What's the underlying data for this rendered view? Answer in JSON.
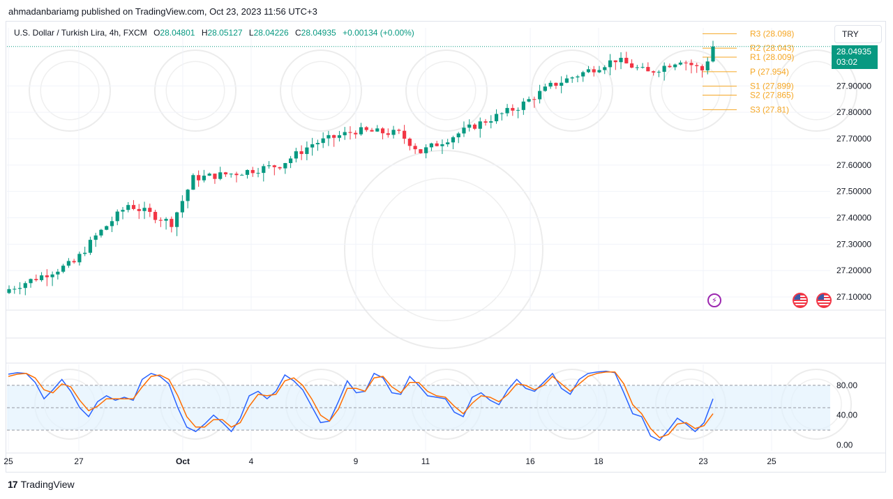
{
  "publisher_line": "ahmadanbariamg published on TradingView.com, Oct 23, 2023 11:56 UTC+3",
  "legend": {
    "symbol": "U.S. Dollar / Turkish Lira, 4h, FXCM",
    "open_label": "O",
    "open": "28.04801",
    "high_label": "H",
    "high": "28.05127",
    "low_label": "L",
    "low": "28.04226",
    "close_label": "C",
    "close": "28.04935",
    "change": "+0.00134 (+0.00%)"
  },
  "currency_button": "TRY",
  "price_badge": {
    "price": "28.04935",
    "countdown": "03:02"
  },
  "footer_brand": "TradingView",
  "colors": {
    "up": "#089981",
    "down": "#f23645",
    "pivot": "#f5a623",
    "stoch_k": "#2962ff",
    "stoch_d": "#ff6d00",
    "band": "#e3f2fd"
  },
  "chart_data": [
    {
      "type": "candlestick",
      "title": "",
      "ylim": [
        27.05,
        28.12
      ],
      "y_ticks": [
        "27.10000",
        "27.20000",
        "27.30000",
        "27.40000",
        "27.50000",
        "27.60000",
        "27.70000",
        "27.80000",
        "27.90000"
      ],
      "x_ticks": [
        "25",
        "27",
        "Oct",
        "4",
        "9",
        "11",
        "16",
        "18",
        "23",
        "25"
      ],
      "last_price": 28.04935,
      "pivots": [
        {
          "label": "R3",
          "value": 28.098
        },
        {
          "label": "R2",
          "value": 28.043
        },
        {
          "label": "R1",
          "value": 28.009
        },
        {
          "label": "P",
          "value": 27.954
        },
        {
          "label": "S1",
          "value": 27.899
        },
        {
          "label": "S2",
          "value": 27.865
        },
        {
          "label": "S3",
          "value": 27.81
        }
      ],
      "anchors": [
        [
          0,
          27.13
        ],
        [
          12,
          27.23
        ],
        [
          16,
          27.33
        ],
        [
          22,
          27.45
        ],
        [
          30,
          27.38
        ],
        [
          34,
          27.55
        ],
        [
          42,
          27.57
        ],
        [
          50,
          27.6
        ],
        [
          56,
          27.68
        ],
        [
          64,
          27.73
        ],
        [
          72,
          27.72
        ],
        [
          76,
          27.65
        ],
        [
          86,
          27.75
        ],
        [
          94,
          27.82
        ],
        [
          100,
          27.9
        ],
        [
          112,
          28.0
        ],
        [
          118,
          27.95
        ],
        [
          124,
          28.0
        ],
        [
          128,
          27.96
        ],
        [
          130,
          28.04
        ]
      ],
      "candle_count": 131
    },
    {
      "type": "line",
      "title": "",
      "ylim": [
        -8,
        108
      ],
      "y_ticks": [
        "0.00",
        "40.00",
        "80.00"
      ],
      "band": [
        20,
        80
      ],
      "series": [
        {
          "values": [
            95,
            97,
            96,
            84,
            62,
            74,
            88,
            72,
            50,
            38,
            58,
            66,
            60,
            64,
            60,
            88,
            96,
            92,
            82,
            50,
            24,
            18,
            28,
            40,
            30,
            18,
            36,
            66,
            72,
            62,
            72,
            94,
            86,
            74,
            52,
            30,
            32,
            58,
            86,
            70,
            72,
            96,
            90,
            70,
            68,
            92,
            80,
            66,
            64,
            62,
            44,
            38,
            64,
            70,
            60,
            54,
            74,
            88,
            76,
            72,
            84,
            96,
            76,
            68,
            88,
            96,
            98,
            99,
            97,
            70,
            42,
            38,
            12,
            6,
            20,
            36,
            28,
            18,
            30,
            62
          ]
        },
        {
          "values": [
            92,
            95,
            96,
            90,
            74,
            70,
            82,
            78,
            60,
            46,
            52,
            62,
            62,
            62,
            62,
            78,
            92,
            94,
            88,
            66,
            38,
            24,
            24,
            34,
            34,
            24,
            30,
            52,
            68,
            66,
            68,
            86,
            90,
            80,
            62,
            40,
            32,
            48,
            76,
            76,
            72,
            90,
            92,
            78,
            70,
            84,
            84,
            72,
            66,
            64,
            52,
            42,
            56,
            66,
            64,
            58,
            68,
            82,
            80,
            74,
            80,
            92,
            82,
            72,
            82,
            92,
            96,
            98,
            98,
            82,
            54,
            42,
            22,
            10,
            14,
            28,
            30,
            22,
            26,
            42
          ]
        }
      ]
    }
  ]
}
